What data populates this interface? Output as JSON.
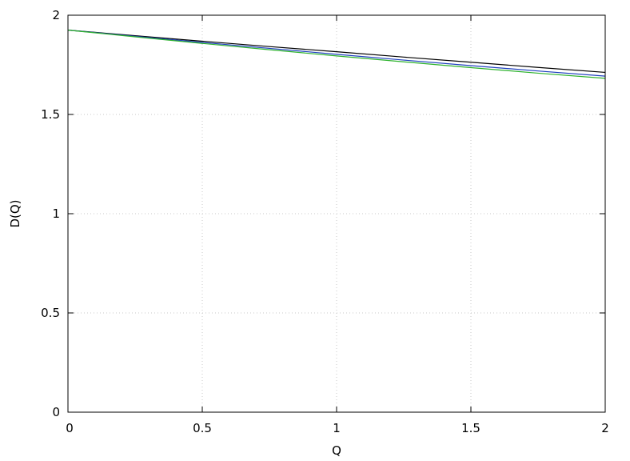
{
  "chart_data": {
    "type": "line",
    "xlabel": "Q",
    "ylabel": "D(Q)",
    "xlim": [
      0,
      2
    ],
    "ylim": [
      0,
      2
    ],
    "xticks": [
      0,
      0.5,
      1,
      1.5,
      2
    ],
    "yticks": [
      0,
      0.5,
      1,
      1.5,
      2
    ],
    "xtick_labels": [
      "0",
      "0.5",
      "1",
      "1.5",
      "2"
    ],
    "ytick_labels": [
      "0",
      "0.5",
      "1",
      "1.5",
      "2"
    ],
    "grid": true,
    "series": [
      {
        "color": "#000000",
        "x": [
          0,
          0.25,
          0.5,
          0.75,
          1,
          1.25,
          1.5,
          1.75,
          2
        ],
        "values": [
          1.925,
          1.897,
          1.869,
          1.842,
          1.816,
          1.789,
          1.763,
          1.737,
          1.712
        ]
      },
      {
        "color": "#1f3fbf",
        "x": [
          0,
          0.25,
          0.5,
          0.75,
          1,
          1.25,
          1.5,
          1.75,
          2
        ],
        "values": [
          1.925,
          1.894,
          1.863,
          1.833,
          1.803,
          1.774,
          1.746,
          1.719,
          1.693
        ]
      },
      {
        "color": "#2db22d",
        "x": [
          0,
          0.25,
          0.5,
          0.75,
          1,
          1.25,
          1.5,
          1.75,
          2
        ],
        "values": [
          1.925,
          1.891,
          1.858,
          1.826,
          1.795,
          1.765,
          1.736,
          1.708,
          1.682
        ]
      }
    ]
  }
}
